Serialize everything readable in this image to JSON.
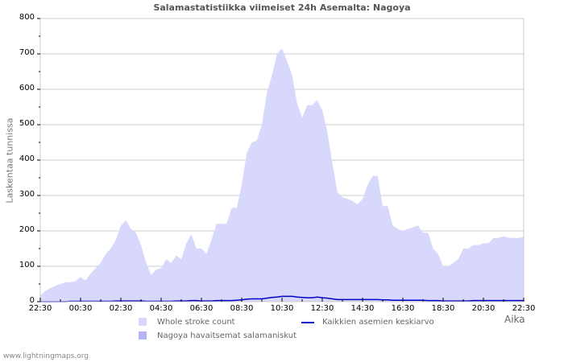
{
  "title": "Salamastatistiikka viimeiset 24h Asemalta: Nagoya",
  "footer": "www.lightningmaps.org",
  "colors": {
    "whole_fill": "#d8d8fc",
    "station_fill": "#b4b4f4",
    "avg_line": "#0000cc",
    "grid": "#cccccc",
    "frame": "#cccccc",
    "axis_text": "#000000",
    "label_text": "#777777"
  },
  "chart_data": {
    "type": "area",
    "title": "Salamastatistiikka viimeiset 24h Asemalta: Nagoya",
    "xlabel": "Aika",
    "ylabel": "Laskentaa tunnissa",
    "ylim": [
      0,
      800
    ],
    "yticks": [
      0,
      100,
      200,
      300,
      400,
      500,
      600,
      700,
      800
    ],
    "xticks": [
      "22:30",
      "00:30",
      "02:30",
      "04:30",
      "06:30",
      "08:30",
      "10:30",
      "12:30",
      "14:30",
      "16:30",
      "18:30",
      "20:30",
      "22:30"
    ],
    "grid": true,
    "legend": [
      {
        "label": "Whole stroke count",
        "kind": "area",
        "color": "#d8d8fc"
      },
      {
        "label": "Kaikkien asemien keskiarvo",
        "kind": "line",
        "color": "#0000cc"
      },
      {
        "label": "Nagoya havaitsemat salamaniskut",
        "kind": "area",
        "color": "#b4b4f4"
      }
    ],
    "x_hours_from_start": [
      0,
      0.25,
      0.5,
      0.75,
      1,
      1.25,
      1.5,
      1.75,
      2,
      2.25,
      2.5,
      2.75,
      3,
      3.25,
      3.5,
      3.75,
      4,
      4.25,
      4.5,
      4.75,
      5,
      5.25,
      5.5,
      5.75,
      6,
      6.25,
      6.5,
      6.75,
      7,
      7.25,
      7.5,
      7.75,
      8,
      8.25,
      8.5,
      8.75,
      9,
      9.25,
      9.5,
      9.75,
      10,
      10.25,
      10.5,
      10.75,
      11,
      11.25,
      11.5,
      11.75,
      12,
      12.25,
      12.5,
      12.75,
      13,
      13.25,
      13.5,
      13.75,
      14,
      14.25,
      14.5,
      14.75,
      15,
      15.25,
      15.5,
      15.75,
      16,
      16.25,
      16.5,
      16.75,
      17,
      17.25,
      17.5,
      17.75,
      18,
      18.25,
      18.5,
      18.75,
      19,
      19.25,
      19.5,
      19.75,
      20,
      20.25,
      20.5,
      20.75,
      21,
      21.25,
      21.5,
      21.75,
      22,
      22.25,
      22.5,
      22.75,
      23,
      23.25,
      23.5,
      23.75,
      24
    ],
    "series": [
      {
        "name": "Whole stroke count",
        "values": [
          18,
          30,
          38,
          45,
          50,
          55,
          55,
          58,
          70,
          60,
          80,
          95,
          110,
          135,
          150,
          175,
          215,
          230,
          205,
          195,
          160,
          110,
          75,
          90,
          95,
          120,
          110,
          130,
          120,
          165,
          190,
          150,
          150,
          135,
          175,
          220,
          220,
          220,
          265,
          265,
          330,
          420,
          450,
          455,
          500,
          590,
          640,
          700,
          715,
          680,
          640,
          560,
          520,
          555,
          555,
          570,
          540,
          480,
          390,
          310,
          295,
          290,
          285,
          275,
          290,
          330,
          355,
          355,
          270,
          270,
          215,
          205,
          200,
          205,
          210,
          215,
          195,
          195,
          150,
          135,
          100,
          100,
          110,
          120,
          150,
          150,
          160,
          160,
          165,
          165,
          180,
          180,
          185,
          180,
          180,
          180,
          183
        ]
      },
      {
        "name": "Nagoya havaitsemat salamaniskut",
        "values": [
          0,
          0,
          0,
          0,
          0,
          0,
          0,
          0,
          0,
          0,
          0,
          0,
          0,
          0,
          0,
          0,
          0,
          0,
          0,
          0,
          0,
          0,
          0,
          0,
          0,
          0,
          0,
          0,
          0,
          0,
          0,
          0,
          0,
          0,
          0,
          0,
          0,
          0,
          0,
          0,
          0,
          0,
          0,
          0,
          0,
          0,
          0,
          0,
          0,
          0,
          0,
          0,
          0,
          0,
          0,
          0,
          0,
          0,
          0,
          0,
          0,
          0,
          0,
          0,
          0,
          0,
          0,
          0,
          0,
          0,
          0,
          0,
          0,
          0,
          0,
          0,
          0,
          0,
          0,
          0,
          0,
          0,
          0,
          0,
          0,
          0,
          0,
          0,
          0,
          0,
          0,
          0,
          0,
          0,
          0,
          0,
          0
        ]
      },
      {
        "name": "Kaikkien asemien keskiarvo",
        "values": [
          0,
          0,
          0,
          0,
          0,
          0,
          1,
          1,
          1,
          1,
          1,
          1,
          1,
          1,
          1,
          2,
          2,
          2,
          2,
          2,
          2,
          1,
          1,
          1,
          1,
          1,
          1,
          2,
          2,
          2,
          3,
          3,
          2,
          2,
          2,
          3,
          3,
          3,
          3,
          4,
          5,
          7,
          8,
          8,
          8,
          10,
          12,
          13,
          15,
          15,
          15,
          13,
          12,
          11,
          11,
          13,
          11,
          10,
          8,
          6,
          6,
          6,
          6,
          6,
          6,
          6,
          6,
          6,
          5,
          5,
          4,
          4,
          4,
          4,
          4,
          4,
          4,
          3,
          3,
          3,
          2,
          2,
          2,
          2,
          2,
          2,
          3,
          3,
          3,
          3,
          3,
          3,
          3,
          3,
          3,
          3,
          3
        ]
      }
    ]
  },
  "axis": {
    "x_ticks": [
      "22:30",
      "00:30",
      "02:30",
      "04:30",
      "06:30",
      "08:30",
      "10:30",
      "12:30",
      "14:30",
      "16:30",
      "18:30",
      "20:30",
      "22:30"
    ],
    "y_ticks": [
      "0",
      "100",
      "200",
      "300",
      "400",
      "500",
      "600",
      "700",
      "800"
    ],
    "x_label": "Aika",
    "y_label": "Laskentaa tunnissa"
  },
  "legend": {
    "whole": "Whole stroke count",
    "avg": "Kaikkien asemien keskiarvo",
    "station": "Nagoya havaitsemat salamaniskut"
  }
}
